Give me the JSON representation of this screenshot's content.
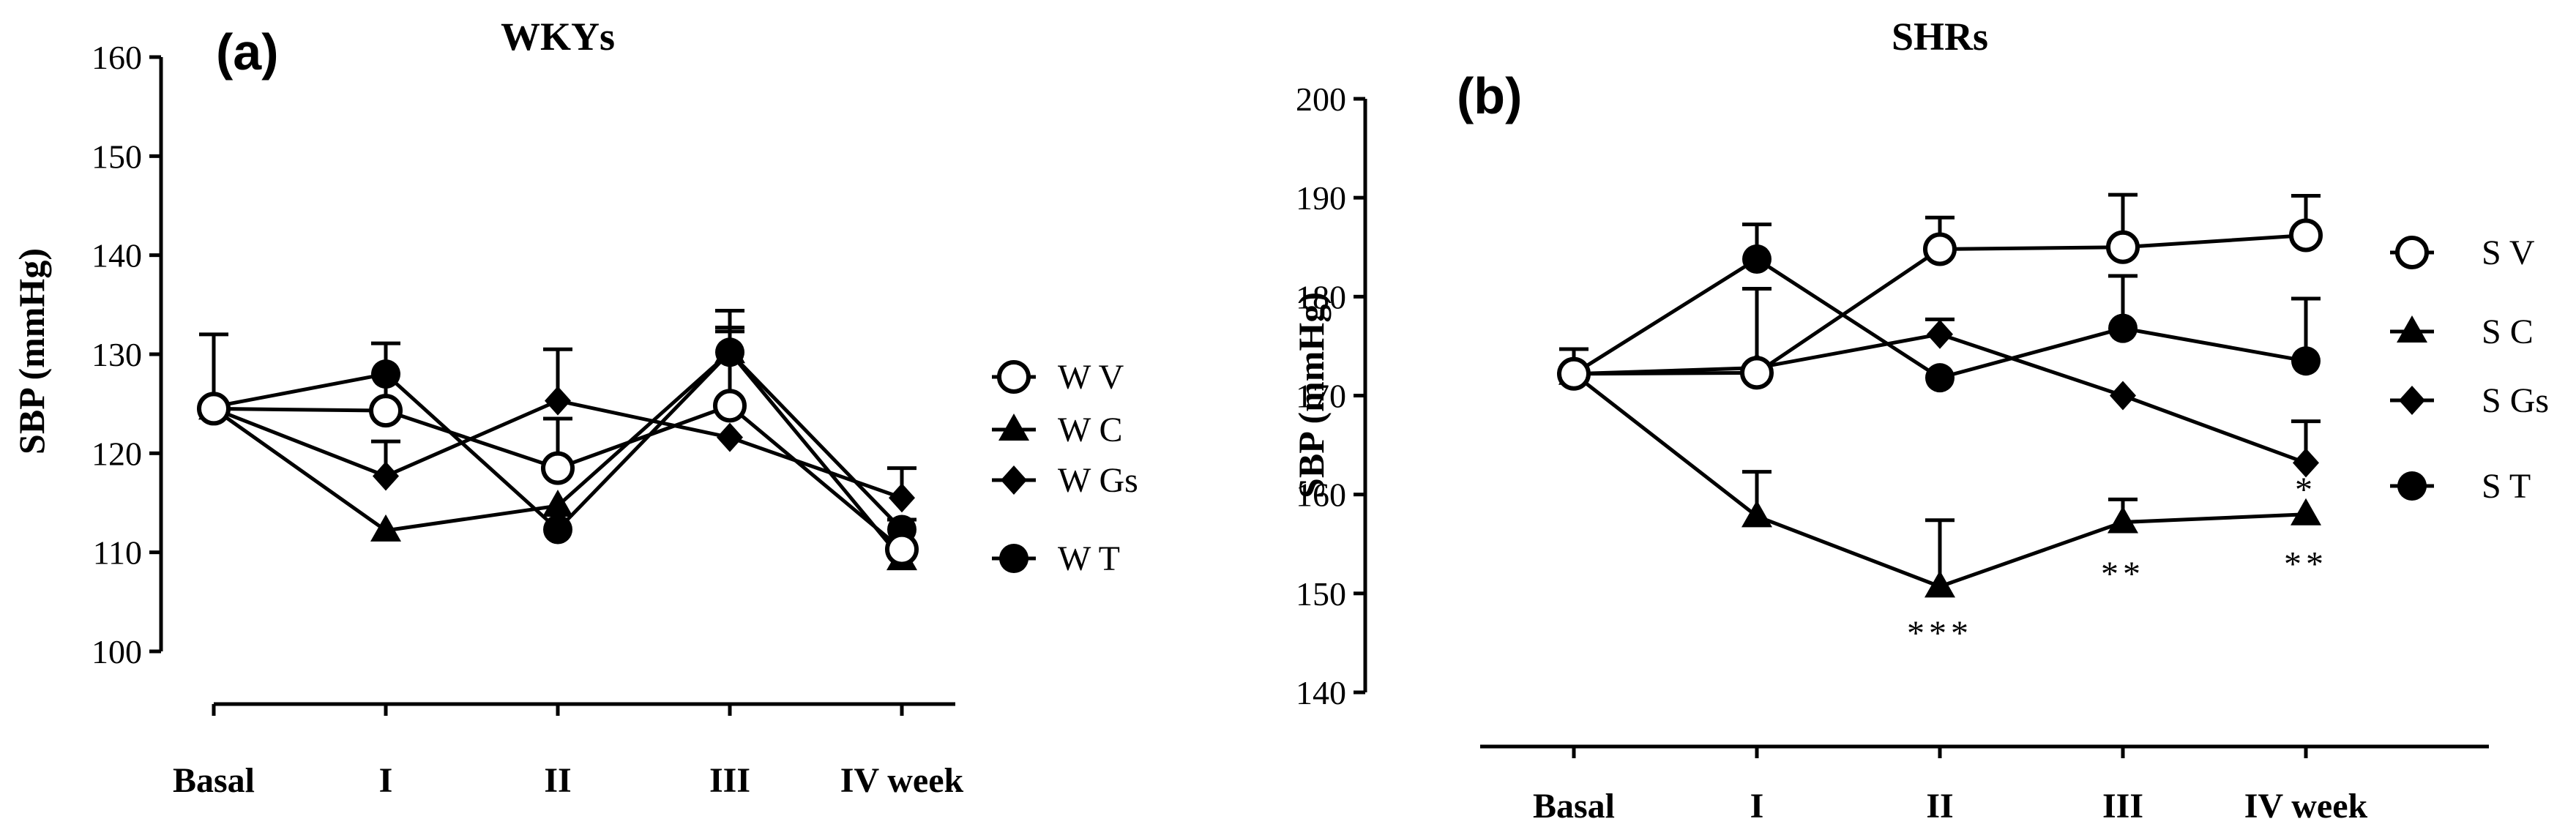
{
  "chart_data": [
    {
      "type": "line",
      "panel_label": "(a)",
      "title": "WKYs",
      "ylabel": "SBP (mmHg)",
      "categories": [
        "Basal",
        "I",
        "II",
        "III",
        "IV week"
      ],
      "ylim": [
        100,
        160
      ],
      "yticks": [
        100,
        110,
        120,
        130,
        140,
        150,
        160
      ],
      "series": [
        {
          "name": "W V",
          "marker": "open-circle",
          "values": [
            124.5,
            124.3,
            118.5,
            124.8,
            110.3
          ],
          "errors": [
            0,
            6.8,
            5.0,
            7.5,
            3.0
          ]
        },
        {
          "name": "W C",
          "marker": "triangle",
          "values": [
            124.5,
            112.2,
            114.7,
            130.2,
            109.3
          ],
          "errors": [
            0,
            0,
            0,
            4.2,
            0
          ]
        },
        {
          "name": "W Gs",
          "marker": "diamond",
          "values": [
            124.5,
            117.7,
            125.3,
            121.6,
            115.5
          ],
          "errors": [
            0,
            3.5,
            5.2,
            0,
            3.0
          ]
        },
        {
          "name": "W T",
          "marker": "filled-circle",
          "values": [
            124.7,
            128.0,
            112.3,
            130.2,
            112.3
          ],
          "errors": [
            7.3,
            0,
            0,
            2.5,
            0
          ]
        }
      ]
    },
    {
      "type": "line",
      "panel_label": "(b)",
      "title": "SHRs",
      "ylabel": "SBP (mmHg)",
      "categories": [
        "Basal",
        "I",
        "II",
        "III",
        "IV week"
      ],
      "ylim": [
        140,
        200
      ],
      "yticks": [
        140,
        150,
        160,
        170,
        180,
        190,
        200
      ],
      "series": [
        {
          "name": "S V",
          "marker": "open-circle",
          "values": [
            172.2,
            172.3,
            184.8,
            185.0,
            186.2
          ],
          "errors": [
            2.5,
            8.5,
            3.2,
            5.3,
            4.0
          ]
        },
        {
          "name": "S C",
          "marker": "triangle",
          "values": [
            172.2,
            157.8,
            150.7,
            157.2,
            158.0
          ],
          "errors": [
            0,
            4.5,
            6.7,
            2.3,
            0
          ]
        },
        {
          "name": "S Gs",
          "marker": "diamond",
          "values": [
            172.2,
            172.8,
            176.2,
            170.0,
            163.2
          ],
          "errors": [
            0,
            0,
            1.5,
            0,
            4.2
          ]
        },
        {
          "name": "S T",
          "marker": "filled-circle",
          "values": [
            172.2,
            183.8,
            171.8,
            176.8,
            173.5
          ],
          "errors": [
            0,
            3.5,
            0,
            5.3,
            6.3
          ]
        }
      ],
      "annotations": [
        {
          "category": "II",
          "text": "***",
          "y": 146.0
        },
        {
          "category": "III",
          "text": "**",
          "y": 152.0
        },
        {
          "category": "IV week",
          "text": "**",
          "y": 153.0
        },
        {
          "category": "IV week",
          "text": "*",
          "y": 160.5
        }
      ]
    }
  ]
}
